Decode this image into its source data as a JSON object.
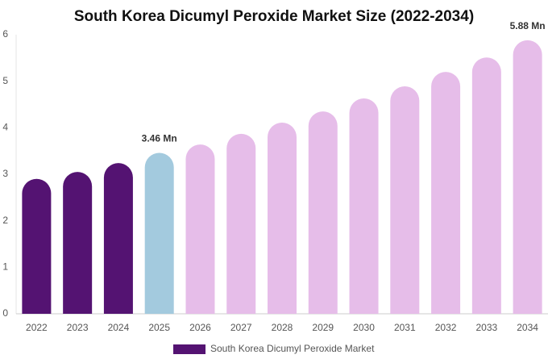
{
  "chart_data": {
    "type": "bar",
    "title": "South Korea Dicumyl Peroxide Market Size (2022-2034)",
    "categories": [
      "2022",
      "2023",
      "2024",
      "2025",
      "2026",
      "2027",
      "2028",
      "2029",
      "2030",
      "2031",
      "2032",
      "2033",
      "2034"
    ],
    "series": [
      {
        "name": "South Korea Dicumyl Peroxide Market",
        "color": "#541372",
        "values": [
          2.9,
          3.05,
          3.24,
          3.46,
          3.64,
          3.87,
          4.11,
          4.35,
          4.63,
          4.89,
          5.2,
          5.51,
          5.88
        ],
        "value_labels": [
          null,
          null,
          null,
          "3.46 Mn",
          null,
          null,
          null,
          null,
          null,
          null,
          null,
          null,
          "5.88 Mn"
        ],
        "colors": [
          "#541372",
          "#541372",
          "#541372",
          "#a3cade",
          "#e6bde9",
          "#e6bde9",
          "#e6bde9",
          "#e6bde9",
          "#e6bde9",
          "#e6bde9",
          "#e6bde9",
          "#e6bde9",
          "#e6bde9"
        ]
      }
    ],
    "ylim": [
      0,
      6
    ],
    "yticks": [
      0,
      1,
      2,
      3,
      4,
      5,
      6
    ],
    "grid": false
  }
}
